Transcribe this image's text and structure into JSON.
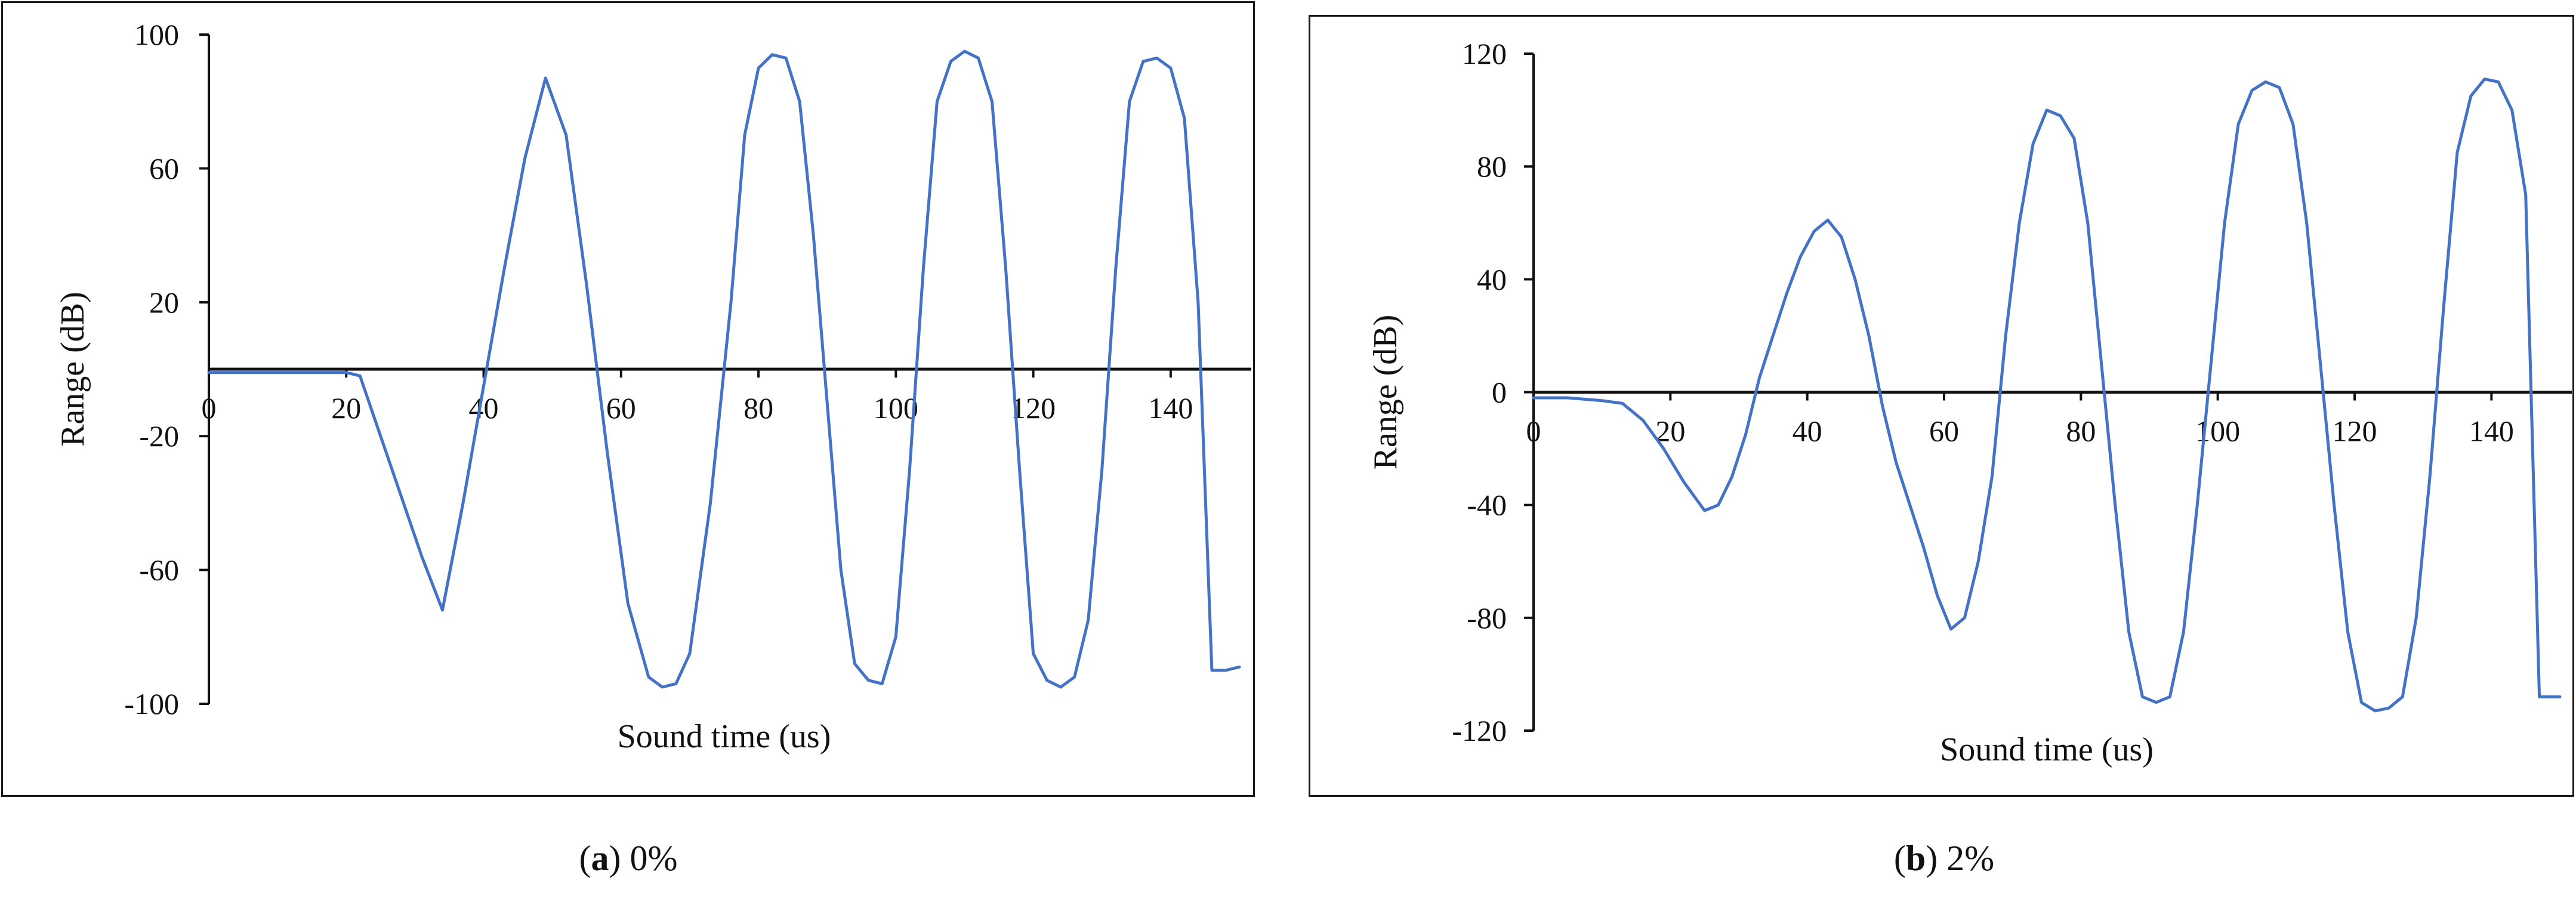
{
  "chart_data": [
    {
      "type": "line",
      "caption_letter": "a",
      "caption_text": "0%",
      "xlabel": "Sound time (us)",
      "ylabel": "Range (dB)",
      "xlim": [
        0,
        150
      ],
      "ylim": [
        -100,
        100
      ],
      "xticks": [
        0,
        20,
        40,
        60,
        80,
        100,
        120,
        140
      ],
      "yticks": [
        -100,
        -60,
        -20,
        20,
        60,
        100
      ],
      "grid": false,
      "series_color": "#4472c4",
      "series": [
        {
          "x": [
            0,
            10,
            20,
            22,
            25,
            28,
            31,
            34,
            37,
            40,
            43,
            46,
            49,
            52,
            55,
            58,
            61,
            64,
            66,
            68,
            70,
            73,
            76,
            78,
            80,
            82,
            84,
            86,
            88,
            90,
            92,
            94,
            96,
            98,
            100,
            102,
            104,
            106,
            108,
            110,
            112,
            114,
            116,
            118,
            120,
            122,
            124,
            126,
            128,
            130,
            132,
            134,
            136,
            138,
            140,
            142,
            144,
            146,
            148,
            150
          ],
          "y": [
            -1,
            -1,
            -1,
            -2,
            -20,
            -38,
            -56,
            -72,
            -40,
            -5,
            30,
            63,
            87,
            70,
            25,
            -25,
            -70,
            -92,
            -95,
            -94,
            -85,
            -40,
            20,
            70,
            90,
            94,
            93,
            80,
            40,
            -10,
            -60,
            -88,
            -93,
            -94,
            -80,
            -30,
            30,
            80,
            92,
            95,
            93,
            80,
            30,
            -30,
            -85,
            -93,
            -95,
            -92,
            -75,
            -30,
            30,
            80,
            92,
            93,
            90,
            75,
            20,
            -90,
            -90,
            -89
          ]
        }
      ]
    },
    {
      "type": "line",
      "caption_letter": "b",
      "caption_text": "2%",
      "xlabel": "Sound time (us)",
      "ylabel": "Range (dB)",
      "xlim": [
        0,
        150
      ],
      "ylim": [
        -120,
        120
      ],
      "xticks": [
        0,
        20,
        40,
        60,
        80,
        100,
        120,
        140
      ],
      "yticks": [
        -120,
        -80,
        -40,
        0,
        40,
        80,
        120
      ],
      "grid": false,
      "series_color": "#4472c4",
      "series": [
        {
          "x": [
            0,
            5,
            10,
            13,
            16,
            19,
            22,
            25,
            27,
            29,
            31,
            33,
            35,
            37,
            39,
            41,
            43,
            45,
            47,
            49,
            51,
            53,
            55,
            57,
            59,
            61,
            63,
            65,
            67,
            69,
            71,
            73,
            75,
            77,
            79,
            81,
            83,
            85,
            87,
            89,
            91,
            93,
            95,
            97,
            99,
            101,
            103,
            105,
            107,
            109,
            111,
            113,
            115,
            117,
            119,
            121,
            123,
            125,
            127,
            129,
            131,
            133,
            135,
            137,
            139,
            141,
            143,
            145,
            147,
            150
          ],
          "y": [
            -2,
            -2,
            -3,
            -4,
            -10,
            -20,
            -32,
            -42,
            -40,
            -30,
            -15,
            5,
            20,
            35,
            48,
            57,
            61,
            55,
            40,
            20,
            -5,
            -25,
            -40,
            -55,
            -72,
            -84,
            -80,
            -60,
            -30,
            20,
            60,
            88,
            100,
            98,
            90,
            60,
            10,
            -40,
            -85,
            -108,
            -110,
            -108,
            -85,
            -40,
            10,
            60,
            95,
            107,
            110,
            108,
            95,
            60,
            10,
            -40,
            -85,
            -110,
            -113,
            -112,
            -108,
            -80,
            -30,
            30,
            85,
            105,
            111,
            110,
            100,
            70,
            -108,
            -108
          ]
        }
      ]
    }
  ]
}
